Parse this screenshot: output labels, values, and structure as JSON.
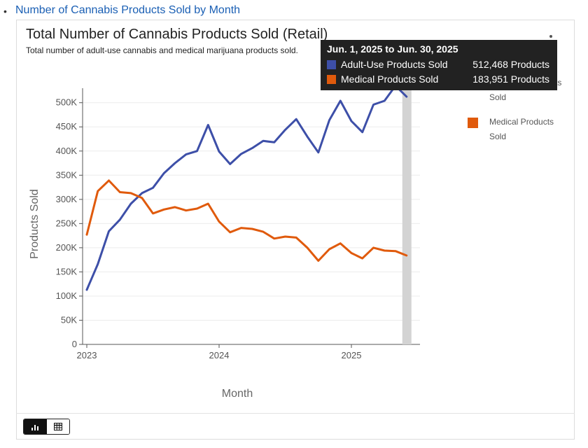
{
  "page": {
    "link_text": "Number of Cannabis Products Sold by Month"
  },
  "chart_data": {
    "type": "line",
    "title": "Total Number of Cannabis Products Sold (Retail)",
    "subtitle": "Total number of adult-use cannabis and medical marijuana products sold.",
    "xlabel": "Month",
    "ylabel": "Products Sold",
    "x_ticks": [
      "2023",
      "2024",
      "2025"
    ],
    "y_ticks": [
      "0",
      "50K",
      "100K",
      "150K",
      "200K",
      "250K",
      "300K",
      "350K",
      "400K",
      "450K",
      "500K"
    ],
    "ylim": [
      0,
      530000
    ],
    "x": [
      "2023-01",
      "2023-02",
      "2023-03",
      "2023-04",
      "2023-05",
      "2023-06",
      "2023-07",
      "2023-08",
      "2023-09",
      "2023-10",
      "2023-11",
      "2023-12",
      "2024-01",
      "2024-02",
      "2024-03",
      "2024-04",
      "2024-05",
      "2024-06",
      "2024-07",
      "2024-08",
      "2024-09",
      "2024-10",
      "2024-11",
      "2024-12",
      "2025-01",
      "2025-02",
      "2025-03",
      "2025-04",
      "2025-05",
      "2025-06"
    ],
    "series": [
      {
        "name": "Adult-Use Products Sold",
        "color": "#3d4fa8",
        "values": [
          113000,
          166000,
          234000,
          258000,
          291000,
          313000,
          324000,
          354000,
          375000,
          393000,
          400000,
          454000,
          399000,
          373000,
          394000,
          406000,
          421000,
          418000,
          444000,
          466000,
          430000,
          397000,
          464000,
          504000,
          462000,
          439000,
          496000,
          504000,
          535000,
          512468
        ]
      },
      {
        "name": "Medical Products Sold",
        "color": "#e05a0c",
        "values": [
          227000,
          317000,
          339000,
          315000,
          313000,
          303000,
          271000,
          279000,
          284000,
          277000,
          281000,
          291000,
          254000,
          232000,
          241000,
          239000,
          233000,
          219000,
          223000,
          221000,
          200000,
          173000,
          197000,
          209000,
          189000,
          178000,
          200000,
          194000,
          193000,
          183951
        ]
      }
    ],
    "highlight_index": 29,
    "legend_position": "right",
    "grid": true
  },
  "legend": {
    "items": [
      {
        "label": "Adult-Use Products Sold",
        "color": "#3d4fa8"
      },
      {
        "label": "Medical Products Sold",
        "color": "#e05a0c"
      }
    ]
  },
  "tooltip": {
    "title": "Jun. 1, 2025 to Jun. 30, 2025",
    "rows": [
      {
        "label": "Adult-Use Products Sold",
        "value": "512,468 Products",
        "color": "#3d4fa8"
      },
      {
        "label": "Medical Products Sold",
        "value": "183,951 Products",
        "color": "#e05a0c"
      }
    ]
  },
  "icons": {
    "chart_view": "bar-chart-icon",
    "table_view": "table-icon"
  }
}
